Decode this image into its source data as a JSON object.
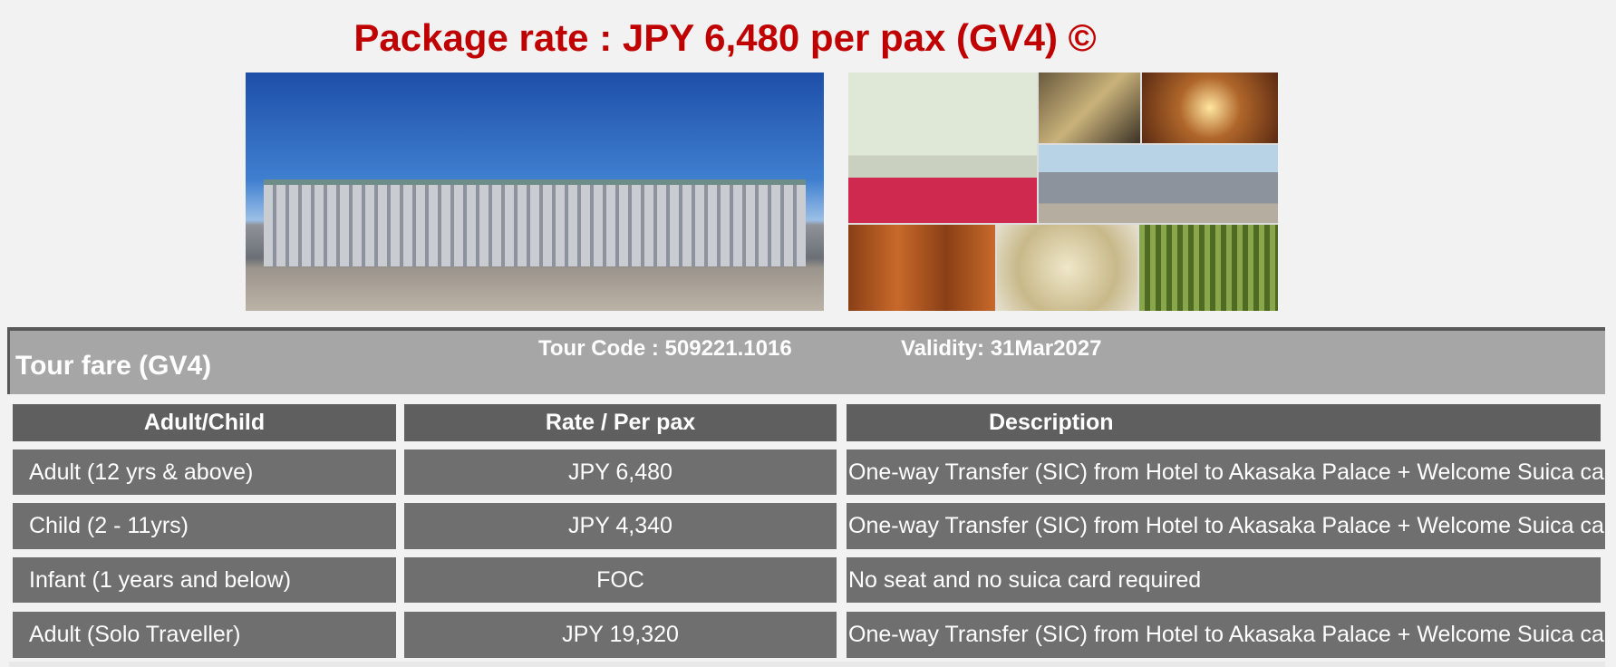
{
  "title": "Package rate : JPY 6,480 per pax (GV4) ©",
  "images": {
    "main": "akasaka-palace-exterior-photo",
    "collage": "akasaka-palace-interior-collage"
  },
  "band": {
    "name": "Tour fare (GV4)",
    "tour_code": "Tour Code : 509221.1016",
    "validity": "Validity: 31Mar2027"
  },
  "table": {
    "headers": [
      "Adult/Child",
      "Rate / Per pax",
      "Description"
    ],
    "rows": [
      [
        "Adult (12 yrs & above)",
        "JPY 6,480",
        "One-way Transfer (SIC) from Hotel to Akasaka Palace + Welcome Suica card"
      ],
      [
        "Child (2 - 11yrs)",
        "JPY 4,340",
        "One-way Transfer (SIC) from Hotel to Akasaka Palace + Welcome Suica card"
      ],
      [
        "Infant (1 years and below)",
        "FOC",
        "No seat and no suica card required"
      ],
      [
        "Adult (Solo Traveller)",
        "JPY 19,320",
        "One-way Transfer (SIC) from Hotel to Akasaka Palace + Welcome Suica card"
      ]
    ]
  },
  "colors": {
    "title": "#c00000",
    "band": "#a6a6a6",
    "header_cell": "#5f5f5f",
    "cell": "#6f6f6f"
  }
}
